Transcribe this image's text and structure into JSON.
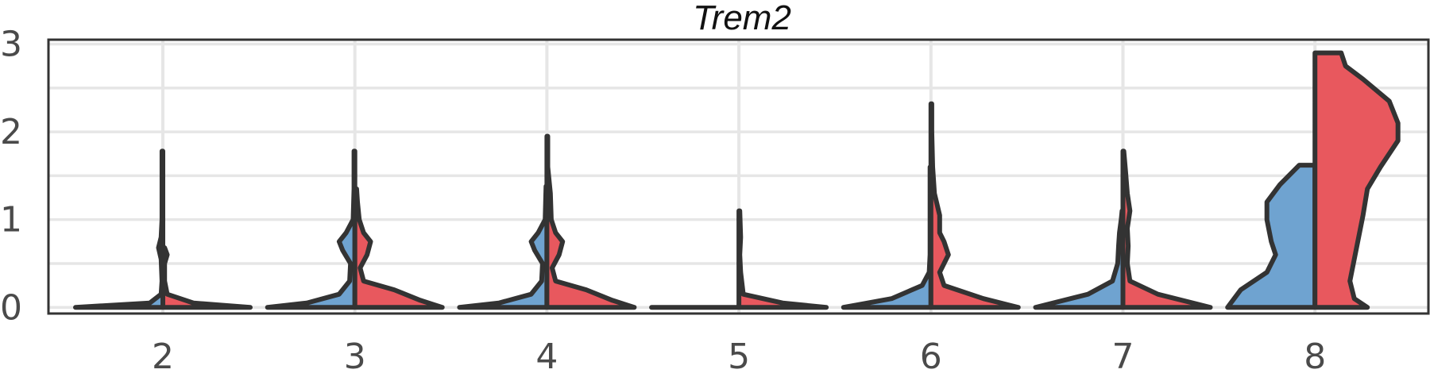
{
  "chart_data": {
    "type": "split-violin",
    "title": "Trem2",
    "xlabel": "",
    "ylabel": "",
    "categories": [
      "2",
      "3",
      "4",
      "5",
      "6",
      "7",
      "8"
    ],
    "ylim": [
      -0.07,
      3.05
    ],
    "yticks": [
      0,
      1,
      2,
      3
    ],
    "grid": true,
    "legend": "none",
    "series": [
      {
        "color": "#6fa3d0",
        "side": "left",
        "violins": [
          {
            "category": "2",
            "max": 1.78,
            "density": [
              [
                0,
                1.0
              ],
              [
                0.05,
                0.15
              ],
              [
                0.15,
                0.02
              ],
              [
                0.3,
                0.01
              ],
              [
                0.55,
                0.02
              ],
              [
                0.68,
                0.05
              ],
              [
                0.8,
                0.02
              ],
              [
                1.0,
                0.01
              ],
              [
                1.3,
                0.01
              ],
              [
                1.78,
                0.01
              ]
            ]
          },
          {
            "category": "3",
            "max": 1.78,
            "density": [
              [
                0,
                1.0
              ],
              [
                0.05,
                0.55
              ],
              [
                0.15,
                0.18
              ],
              [
                0.3,
                0.06
              ],
              [
                0.5,
                0.05
              ],
              [
                0.65,
                0.14
              ],
              [
                0.75,
                0.18
              ],
              [
                0.85,
                0.1
              ],
              [
                1.0,
                0.02
              ],
              [
                1.35,
                0.01
              ],
              [
                1.78,
                0.01
              ]
            ]
          },
          {
            "category": "4",
            "max": 1.38,
            "density": [
              [
                0,
                1.0
              ],
              [
                0.05,
                0.55
              ],
              [
                0.15,
                0.18
              ],
              [
                0.3,
                0.06
              ],
              [
                0.5,
                0.05
              ],
              [
                0.65,
                0.14
              ],
              [
                0.75,
                0.18
              ],
              [
                0.85,
                0.1
              ],
              [
                1.0,
                0.02
              ],
              [
                1.38,
                0.01
              ]
            ]
          },
          {
            "category": "5",
            "max": 0.0,
            "density": [
              [
                0,
                1.0
              ]
            ]
          },
          {
            "category": "6",
            "max": 1.6,
            "density": [
              [
                0,
                1.0
              ],
              [
                0.1,
                0.45
              ],
              [
                0.25,
                0.1
              ],
              [
                0.4,
                0.02
              ],
              [
                0.6,
                0.01
              ],
              [
                1.0,
                0.01
              ],
              [
                1.6,
                0.01
              ]
            ]
          },
          {
            "category": "7",
            "max": 1.1,
            "density": [
              [
                0,
                1.0
              ],
              [
                0.15,
                0.4
              ],
              [
                0.3,
                0.12
              ],
              [
                0.5,
                0.06
              ],
              [
                0.7,
                0.05
              ],
              [
                0.85,
                0.04
              ],
              [
                1.0,
                0.02
              ],
              [
                1.1,
                0.01
              ]
            ]
          },
          {
            "category": "8",
            "max": 1.62,
            "density": [
              [
                0,
                1.0
              ],
              [
                0.2,
                0.85
              ],
              [
                0.4,
                0.55
              ],
              [
                0.6,
                0.45
              ],
              [
                0.75,
                0.5
              ],
              [
                1.0,
                0.55
              ],
              [
                1.2,
                0.55
              ],
              [
                1.4,
                0.4
              ],
              [
                1.62,
                0.18
              ]
            ]
          }
        ]
      },
      {
        "color": "#e8585e",
        "side": "right",
        "violins": [
          {
            "category": "2",
            "max": 0.68,
            "density": [
              [
                0,
                1.0
              ],
              [
                0.05,
                0.35
              ],
              [
                0.15,
                0.05
              ],
              [
                0.3,
                0.02
              ],
              [
                0.5,
                0.02
              ],
              [
                0.6,
                0.05
              ],
              [
                0.68,
                0.02
              ]
            ]
          },
          {
            "category": "3",
            "max": 1.35,
            "density": [
              [
                0,
                1.0
              ],
              [
                0.08,
                0.75
              ],
              [
                0.2,
                0.45
              ],
              [
                0.3,
                0.1
              ],
              [
                0.45,
                0.06
              ],
              [
                0.6,
                0.14
              ],
              [
                0.75,
                0.18
              ],
              [
                0.85,
                0.1
              ],
              [
                1.0,
                0.05
              ],
              [
                1.2,
                0.03
              ],
              [
                1.35,
                0.02
              ]
            ]
          },
          {
            "category": "4",
            "max": 1.95,
            "density": [
              [
                0,
                1.0
              ],
              [
                0.08,
                0.75
              ],
              [
                0.2,
                0.45
              ],
              [
                0.3,
                0.1
              ],
              [
                0.45,
                0.06
              ],
              [
                0.6,
                0.14
              ],
              [
                0.75,
                0.18
              ],
              [
                0.85,
                0.1
              ],
              [
                1.0,
                0.05
              ],
              [
                1.3,
                0.04
              ],
              [
                1.6,
                0.01
              ],
              [
                1.95,
                0.01
              ]
            ]
          },
          {
            "category": "5",
            "max": 1.1,
            "density": [
              [
                0,
                1.0
              ],
              [
                0.05,
                0.5
              ],
              [
                0.15,
                0.05
              ],
              [
                0.4,
                0.02
              ],
              [
                0.6,
                0.01
              ],
              [
                0.8,
                0.02
              ],
              [
                1.1,
                0.01
              ]
            ]
          },
          {
            "category": "6",
            "max": 2.32,
            "density": [
              [
                0,
                1.0
              ],
              [
                0.1,
                0.6
              ],
              [
                0.25,
                0.15
              ],
              [
                0.4,
                0.1
              ],
              [
                0.6,
                0.2
              ],
              [
                0.75,
                0.15
              ],
              [
                0.85,
                0.1
              ],
              [
                1.05,
                0.1
              ],
              [
                1.3,
                0.04
              ],
              [
                1.6,
                0.02
              ],
              [
                2.0,
                0.01
              ],
              [
                2.32,
                0.01
              ]
            ]
          },
          {
            "category": "7",
            "max": 1.78,
            "density": [
              [
                0,
                1.0
              ],
              [
                0.15,
                0.4
              ],
              [
                0.3,
                0.08
              ],
              [
                0.5,
                0.05
              ],
              [
                0.7,
                0.06
              ],
              [
                0.9,
                0.05
              ],
              [
                1.1,
                0.08
              ],
              [
                1.3,
                0.05
              ],
              [
                1.55,
                0.03
              ],
              [
                1.78,
                0.01
              ]
            ]
          },
          {
            "category": "8",
            "max": 2.9,
            "density": [
              [
                0,
                0.6
              ],
              [
                0.1,
                0.45
              ],
              [
                0.3,
                0.4
              ],
              [
                0.55,
                0.45
              ],
              [
                0.8,
                0.5
              ],
              [
                1.05,
                0.55
              ],
              [
                1.35,
                0.6
              ],
              [
                1.6,
                0.75
              ],
              [
                1.9,
                0.95
              ],
              [
                2.1,
                0.95
              ],
              [
                2.35,
                0.85
              ],
              [
                2.6,
                0.55
              ],
              [
                2.75,
                0.35
              ],
              [
                2.9,
                0.3
              ]
            ]
          }
        ]
      }
    ]
  }
}
